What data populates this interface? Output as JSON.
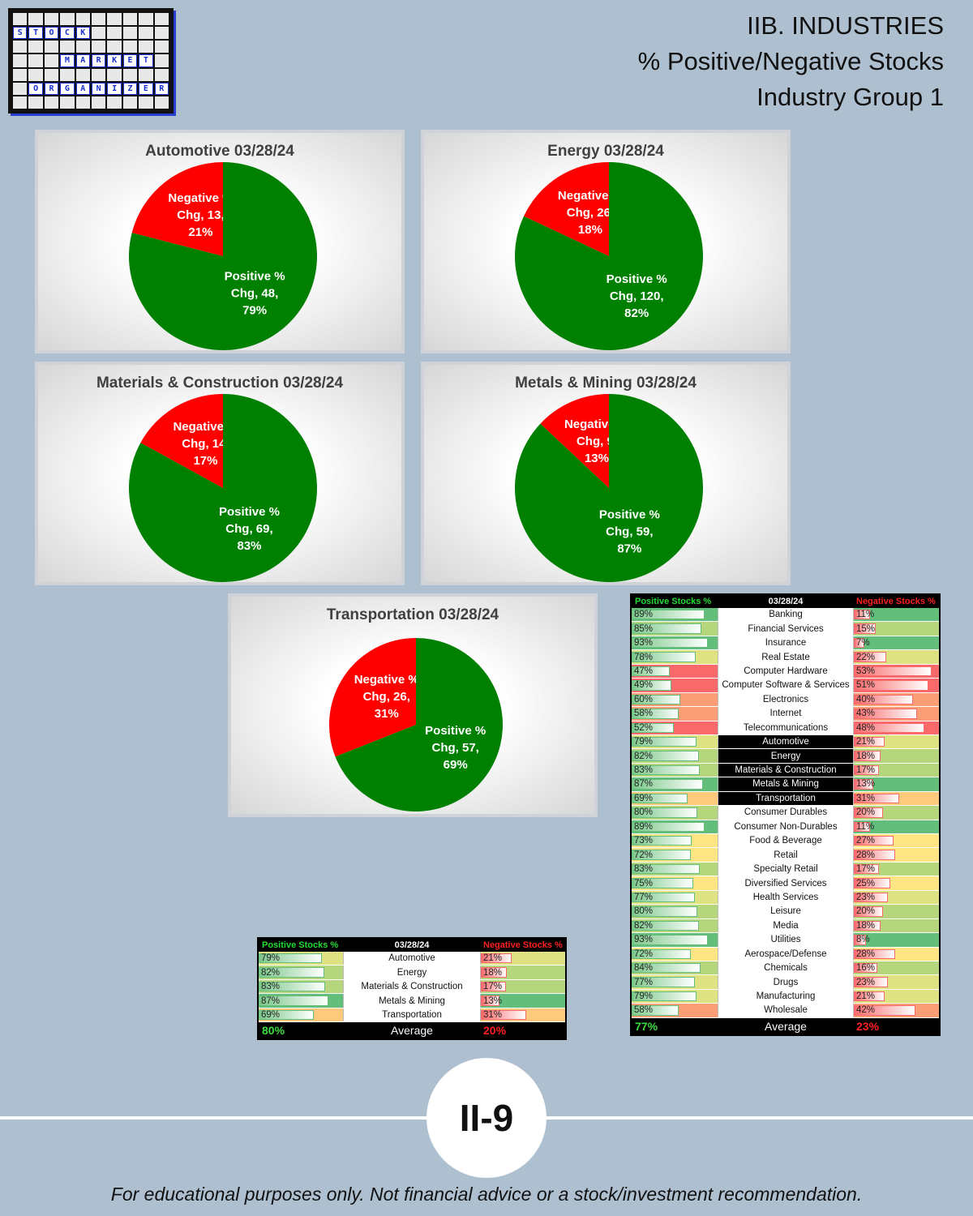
{
  "logo": {
    "rows": [
      [
        "",
        "",
        "",
        "",
        "",
        "",
        "",
        "",
        "",
        ""
      ],
      [
        "S",
        "T",
        "O",
        "C",
        "K",
        "",
        "",
        "",
        "",
        ""
      ],
      [
        "",
        "",
        "",
        "",
        "",
        "",
        "",
        "",
        "",
        ""
      ],
      [
        "",
        "",
        "",
        "M",
        "A",
        "R",
        "K",
        "E",
        "T",
        ""
      ],
      [
        "",
        "",
        "",
        "",
        "",
        "",
        "",
        "",
        "",
        ""
      ],
      [
        "",
        "O",
        "R",
        "G",
        "A",
        "N",
        "I",
        "Z",
        "E",
        "R"
      ],
      [
        "",
        "",
        "",
        "",
        "",
        "",
        "",
        "",
        "",
        ""
      ]
    ]
  },
  "header": {
    "line1": "IIB. INDUSTRIES",
    "line2": "% Positive/Negative Stocks",
    "line3": "Industry Group 1"
  },
  "chart_data": [
    {
      "type": "pie",
      "title": "Automotive 03/28/24",
      "slices": [
        {
          "label": "Negative % Chg",
          "count": 13,
          "percent": 21,
          "color": "#ff0000"
        },
        {
          "label": "Positive % Chg",
          "count": 48,
          "percent": 79,
          "color": "#008000"
        }
      ]
    },
    {
      "type": "pie",
      "title": "Energy 03/28/24",
      "slices": [
        {
          "label": "Negative % Chg",
          "count": 26,
          "percent": 18,
          "color": "#ff0000"
        },
        {
          "label": "Positive % Chg",
          "count": 120,
          "percent": 82,
          "color": "#008000"
        }
      ]
    },
    {
      "type": "pie",
      "title": "Materials & Construction 03/28/24",
      "slices": [
        {
          "label": "Negative % Chg",
          "count": 14,
          "percent": 17,
          "color": "#ff0000"
        },
        {
          "label": "Positive % Chg",
          "count": 69,
          "percent": 83,
          "color": "#008000"
        }
      ]
    },
    {
      "type": "pie",
      "title": "Metals & Mining 03/28/24",
      "slices": [
        {
          "label": "Negative % Chg",
          "count": 9,
          "percent": 13,
          "color": "#ff0000"
        },
        {
          "label": "Positive % Chg",
          "count": 59,
          "percent": 87,
          "color": "#008000"
        }
      ]
    },
    {
      "type": "pie",
      "title": "Transportation 03/28/24",
      "slices": [
        {
          "label": "Negative % Chg",
          "count": 26,
          "percent": 31,
          "color": "#ff0000"
        },
        {
          "label": "Positive % Chg",
          "count": 57,
          "percent": 69,
          "color": "#008000"
        }
      ]
    }
  ],
  "small_table": {
    "type": "table",
    "header": {
      "positive": "Positive Stocks %",
      "date": "03/28/24",
      "negative": "Negative Stocks %"
    },
    "rows": [
      {
        "name": "Automotive",
        "pos": 79,
        "neg": 21
      },
      {
        "name": "Energy",
        "pos": 82,
        "neg": 18
      },
      {
        "name": "Materials & Construction",
        "pos": 83,
        "neg": 17
      },
      {
        "name": "Metals & Mining",
        "pos": 87,
        "neg": 13
      },
      {
        "name": "Transportation",
        "pos": 69,
        "neg": 31
      }
    ],
    "average": {
      "pos": "80%",
      "label": "Average",
      "neg": "20%"
    }
  },
  "big_table": {
    "type": "table",
    "header": {
      "positive": "Positive Stocks %",
      "date": "03/28/24",
      "negative": "Negative Stocks %"
    },
    "rows": [
      {
        "name": "Banking",
        "pos": 89,
        "neg": 11
      },
      {
        "name": "Financial Services",
        "pos": 85,
        "neg": 15
      },
      {
        "name": "Insurance",
        "pos": 93,
        "neg": 7
      },
      {
        "name": "Real Estate",
        "pos": 78,
        "neg": 22
      },
      {
        "name": "Computer Hardware",
        "pos": 47,
        "neg": 53
      },
      {
        "name": "Computer Software & Services",
        "pos": 49,
        "neg": 51
      },
      {
        "name": "Electronics",
        "pos": 60,
        "neg": 40
      },
      {
        "name": "Internet",
        "pos": 58,
        "neg": 43
      },
      {
        "name": "Telecommunications",
        "pos": 52,
        "neg": 48
      },
      {
        "name": "Automotive",
        "pos": 79,
        "neg": 21,
        "group": true
      },
      {
        "name": "Energy",
        "pos": 82,
        "neg": 18,
        "group": true
      },
      {
        "name": "Materials & Construction",
        "pos": 83,
        "neg": 17,
        "group": true
      },
      {
        "name": "Metals & Mining",
        "pos": 87,
        "neg": 13,
        "group": true
      },
      {
        "name": "Transportation",
        "pos": 69,
        "neg": 31,
        "group": true
      },
      {
        "name": "Consumer Durables",
        "pos": 80,
        "neg": 20
      },
      {
        "name": "Consumer Non-Durables",
        "pos": 89,
        "neg": 11
      },
      {
        "name": "Food & Beverage",
        "pos": 73,
        "neg": 27
      },
      {
        "name": "Retail",
        "pos": 72,
        "neg": 28
      },
      {
        "name": "Specialty Retail",
        "pos": 83,
        "neg": 17
      },
      {
        "name": "Diversified Services",
        "pos": 75,
        "neg": 25
      },
      {
        "name": "Health Services",
        "pos": 77,
        "neg": 23
      },
      {
        "name": "Leisure",
        "pos": 80,
        "neg": 20
      },
      {
        "name": "Media",
        "pos": 82,
        "neg": 18
      },
      {
        "name": "Utilities",
        "pos": 93,
        "neg": 8
      },
      {
        "name": "Aerospace/Defense",
        "pos": 72,
        "neg": 28
      },
      {
        "name": "Chemicals",
        "pos": 84,
        "neg": 16
      },
      {
        "name": "Drugs",
        "pos": 77,
        "neg": 23
      },
      {
        "name": "Manufacturing",
        "pos": 79,
        "neg": 21
      },
      {
        "name": "Wholesale",
        "pos": 58,
        "neg": 42
      }
    ],
    "average": {
      "pos": "77%",
      "label": "Average",
      "neg": "23%"
    }
  },
  "footer": {
    "page_number": "II-9",
    "disclaimer": "For educational purposes only. Not financial advice or a stock/investment recommendation."
  }
}
